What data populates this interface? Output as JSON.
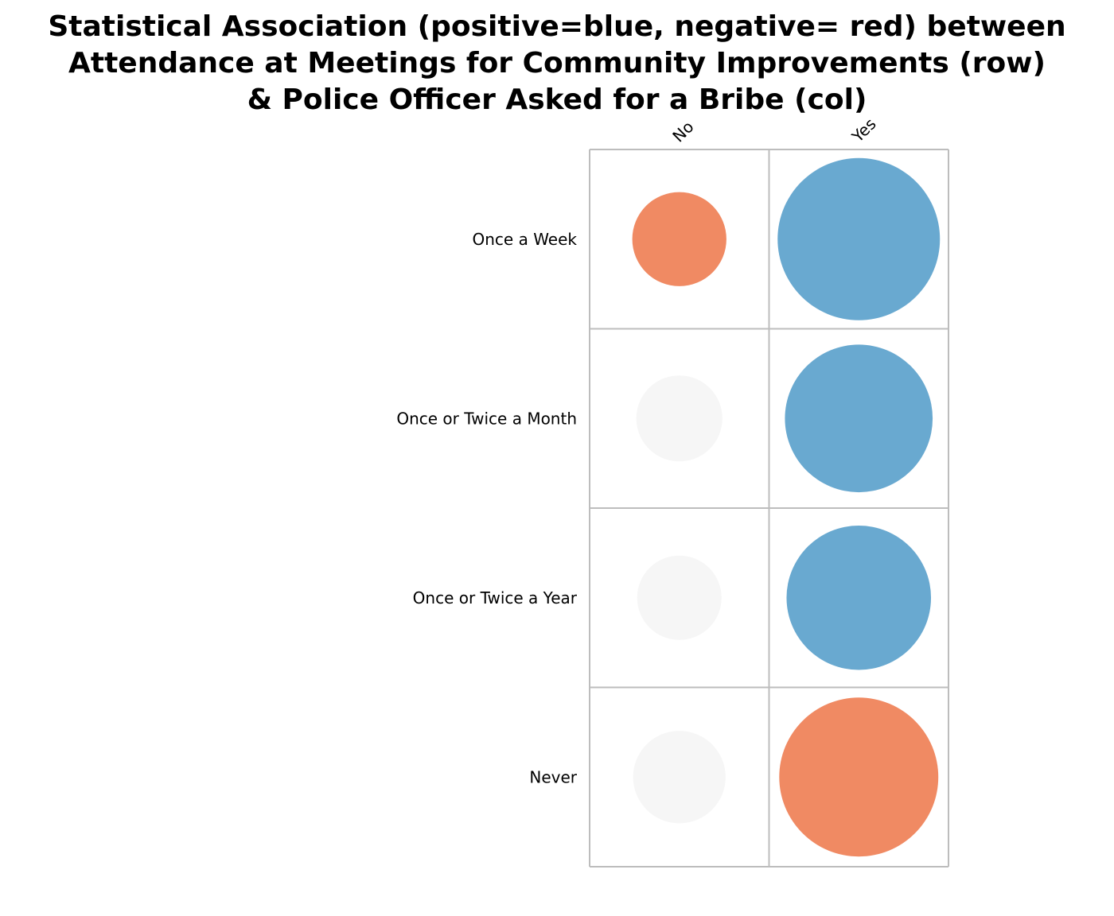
{
  "chart_data": {
    "type": "balloon",
    "title": [
      "Statistical Association (positive=blue, negative= red) between",
      "Attendance at Meetings for Community Improvements (row)",
      "& Police Officer Asked for a Bribe (col)"
    ],
    "rows": [
      "Once a Week",
      "Once or Twice a Month",
      "Once or Twice a Year",
      "Never"
    ],
    "columns": [
      "No",
      "Yes"
    ],
    "cells": [
      [
        {
          "sign": "negative",
          "magnitude": 0.58
        },
        {
          "sign": "positive",
          "magnitude": 1.0
        }
      ],
      [
        {
          "sign": "neutral",
          "magnitude": 0.53
        },
        {
          "sign": "positive",
          "magnitude": 0.91
        }
      ],
      [
        {
          "sign": "neutral",
          "magnitude": 0.52
        },
        {
          "sign": "positive",
          "magnitude": 0.89
        }
      ],
      [
        {
          "sign": "neutral",
          "magnitude": 0.57
        },
        {
          "sign": "negative",
          "magnitude": 0.98
        }
      ]
    ],
    "colors": {
      "positive": "#69a9d0",
      "negative": "#f08a63",
      "neutral": "#f6f6f6",
      "grid": "#bdbdbd"
    },
    "legend": "none"
  }
}
